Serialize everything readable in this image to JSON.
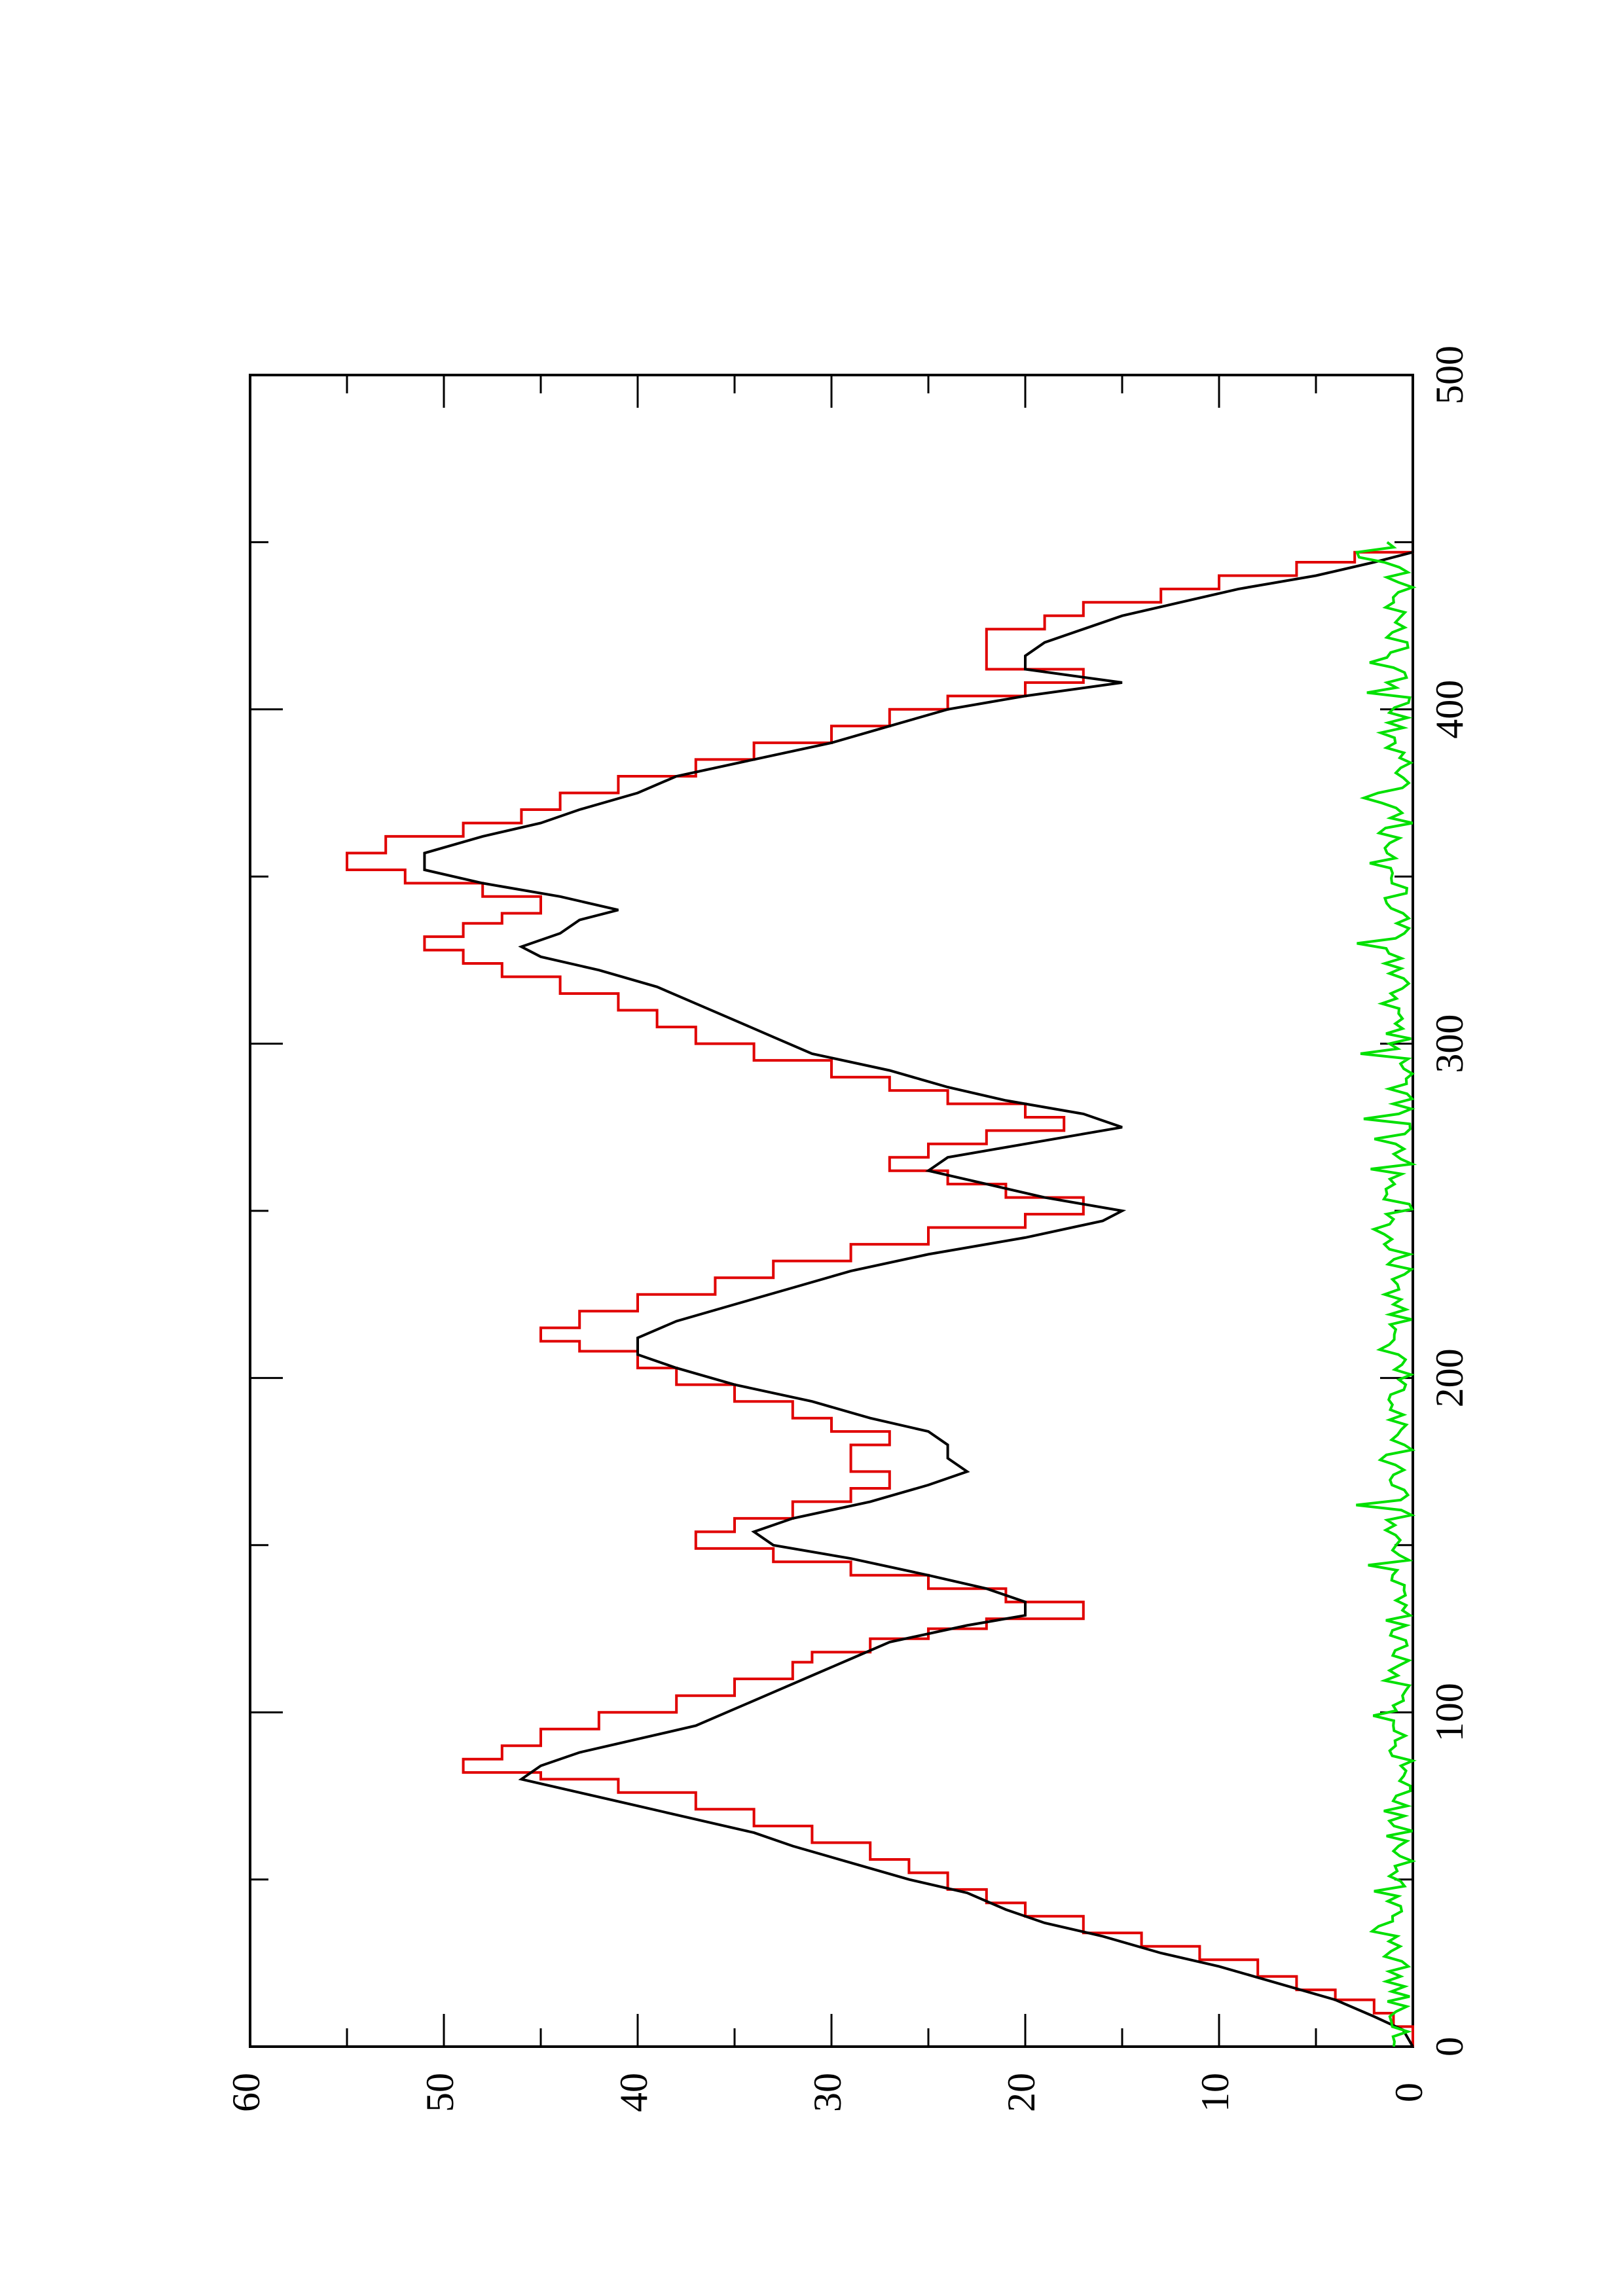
{
  "chart_data": {
    "type": "line",
    "orientation": "rotated-90-ccw",
    "title": "",
    "xlabel": "",
    "ylabel": "",
    "xlim": [
      0,
      500
    ],
    "ylim": [
      0,
      60
    ],
    "x_ticks": [
      0,
      100,
      200,
      300,
      400,
      500
    ],
    "y_ticks": [
      0,
      10,
      20,
      30,
      40,
      50,
      60
    ],
    "x_tick_labels": [
      "0",
      "100",
      "200",
      "300",
      "400",
      "500"
    ],
    "y_tick_labels": [
      "0",
      "10",
      "20",
      "30",
      "40",
      "50",
      "60"
    ],
    "grid": false,
    "legend": "none",
    "series": [
      {
        "color": "#e00000",
        "step": true,
        "points": [
          [
            0,
            0
          ],
          [
            3,
            0
          ],
          [
            6,
            1
          ],
          [
            10,
            2
          ],
          [
            14,
            4
          ],
          [
            17,
            6
          ],
          [
            21,
            8
          ],
          [
            26,
            11
          ],
          [
            30,
            14
          ],
          [
            34,
            17
          ],
          [
            39,
            20
          ],
          [
            43,
            22
          ],
          [
            47,
            24
          ],
          [
            52,
            26
          ],
          [
            56,
            28
          ],
          [
            61,
            31
          ],
          [
            66,
            34
          ],
          [
            71,
            37
          ],
          [
            76,
            41
          ],
          [
            80,
            45
          ],
          [
            82,
            49
          ],
          [
            86,
            47
          ],
          [
            90,
            45
          ],
          [
            95,
            42
          ],
          [
            100,
            38
          ],
          [
            105,
            35
          ],
          [
            110,
            32
          ],
          [
            115,
            31
          ],
          [
            118,
            28
          ],
          [
            122,
            25
          ],
          [
            125,
            22
          ],
          [
            128,
            17
          ],
          [
            133,
            21
          ],
          [
            137,
            25
          ],
          [
            141,
            29
          ],
          [
            145,
            33
          ],
          [
            149,
            37
          ],
          [
            154,
            35
          ],
          [
            158,
            32
          ],
          [
            163,
            29
          ],
          [
            167,
            27
          ],
          [
            172,
            29
          ],
          [
            176,
            29
          ],
          [
            180,
            27
          ],
          [
            184,
            30
          ],
          [
            188,
            32
          ],
          [
            193,
            35
          ],
          [
            198,
            38
          ],
          [
            203,
            40
          ],
          [
            208,
            43
          ],
          [
            211,
            45
          ],
          [
            215,
            43
          ],
          [
            220,
            40
          ],
          [
            225,
            36
          ],
          [
            230,
            33
          ],
          [
            235,
            29
          ],
          [
            240,
            25
          ],
          [
            245,
            20
          ],
          [
            249,
            17
          ],
          [
            254,
            21
          ],
          [
            258,
            24
          ],
          [
            262,
            27
          ],
          [
            266,
            25
          ],
          [
            270,
            22
          ],
          [
            274,
            18
          ],
          [
            278,
            20
          ],
          [
            282,
            24
          ],
          [
            286,
            27
          ],
          [
            290,
            30
          ],
          [
            295,
            34
          ],
          [
            300,
            37
          ],
          [
            305,
            39
          ],
          [
            310,
            41
          ],
          [
            315,
            44
          ],
          [
            320,
            47
          ],
          [
            324,
            49
          ],
          [
            328,
            51
          ],
          [
            332,
            49
          ],
          [
            336,
            47
          ],
          [
            339,
            45
          ],
          [
            344,
            48
          ],
          [
            348,
            52
          ],
          [
            352,
            55
          ],
          [
            357,
            53
          ],
          [
            362,
            49
          ],
          [
            366,
            46
          ],
          [
            370,
            44
          ],
          [
            375,
            41
          ],
          [
            380,
            37
          ],
          [
            385,
            34
          ],
          [
            390,
            30
          ],
          [
            395,
            27
          ],
          [
            400,
            24
          ],
          [
            404,
            20
          ],
          [
            408,
            17
          ],
          [
            412,
            22
          ],
          [
            416,
            22
          ],
          [
            420,
            22
          ],
          [
            424,
            19
          ],
          [
            428,
            17
          ],
          [
            432,
            13
          ],
          [
            436,
            10
          ],
          [
            440,
            6
          ],
          [
            444,
            3
          ],
          [
            447,
            0
          ],
          [
            450,
            0
          ]
        ]
      },
      {
        "color": "#000000",
        "step": false,
        "points": [
          [
            0,
            0
          ],
          [
            5,
            0.5
          ],
          [
            9,
            2
          ],
          [
            14,
            4
          ],
          [
            19,
            7
          ],
          [
            24,
            10
          ],
          [
            28,
            13
          ],
          [
            33,
            16
          ],
          [
            37,
            19
          ],
          [
            41,
            21
          ],
          [
            46,
            23
          ],
          [
            50,
            26
          ],
          [
            55,
            29
          ],
          [
            60,
            32
          ],
          [
            64,
            34
          ],
          [
            68,
            37
          ],
          [
            72,
            40
          ],
          [
            76,
            43
          ],
          [
            80,
            46
          ],
          [
            84,
            45
          ],
          [
            88,
            43
          ],
          [
            92,
            40
          ],
          [
            96,
            37
          ],
          [
            101,
            35
          ],
          [
            106,
            33
          ],
          [
            111,
            31
          ],
          [
            116,
            29
          ],
          [
            121,
            27
          ],
          [
            126,
            23
          ],
          [
            129,
            20
          ],
          [
            133,
            20
          ],
          [
            137,
            22
          ],
          [
            141,
            25
          ],
          [
            146,
            29
          ],
          [
            150,
            33
          ],
          [
            154,
            34
          ],
          [
            158,
            32
          ],
          [
            163,
            28
          ],
          [
            168,
            25
          ],
          [
            172,
            23
          ],
          [
            176,
            24
          ],
          [
            180,
            24
          ],
          [
            184,
            25
          ],
          [
            188,
            28
          ],
          [
            193,
            31
          ],
          [
            198,
            35
          ],
          [
            203,
            38
          ],
          [
            207,
            40
          ],
          [
            212,
            40
          ],
          [
            217,
            38
          ],
          [
            222,
            35
          ],
          [
            227,
            32
          ],
          [
            232,
            29
          ],
          [
            237,
            25
          ],
          [
            242,
            20
          ],
          [
            247,
            16
          ],
          [
            250,
            15
          ],
          [
            254,
            19
          ],
          [
            258,
            22
          ],
          [
            262,
            25
          ],
          [
            266,
            24
          ],
          [
            270,
            20
          ],
          [
            275,
            15
          ],
          [
            279,
            17
          ],
          [
            283,
            21
          ],
          [
            287,
            24
          ],
          [
            292,
            27
          ],
          [
            297,
            31
          ],
          [
            302,
            33
          ],
          [
            307,
            35
          ],
          [
            312,
            37
          ],
          [
            317,
            39
          ],
          [
            322,
            42
          ],
          [
            326,
            45
          ],
          [
            329,
            46
          ],
          [
            333,
            44
          ],
          [
            337,
            43
          ],
          [
            340,
            41
          ],
          [
            344,
            44
          ],
          [
            348,
            48
          ],
          [
            352,
            51
          ],
          [
            357,
            51
          ],
          [
            362,
            48
          ],
          [
            366,
            45
          ],
          [
            370,
            43
          ],
          [
            375,
            40
          ],
          [
            380,
            38
          ],
          [
            385,
            34
          ],
          [
            390,
            30
          ],
          [
            395,
            27
          ],
          [
            400,
            24
          ],
          [
            404,
            20
          ],
          [
            408,
            15
          ],
          [
            412,
            20
          ],
          [
            416,
            20
          ],
          [
            420,
            19
          ],
          [
            424,
            17
          ],
          [
            428,
            15
          ],
          [
            432,
            12
          ],
          [
            436,
            9
          ],
          [
            440,
            5
          ],
          [
            444,
            2
          ],
          [
            447,
            0
          ],
          [
            450,
            0
          ]
        ]
      },
      {
        "color": "#00e000",
        "step": false,
        "noise_amplitude": 2.5,
        "x_range": [
          0,
          450
        ]
      }
    ]
  }
}
